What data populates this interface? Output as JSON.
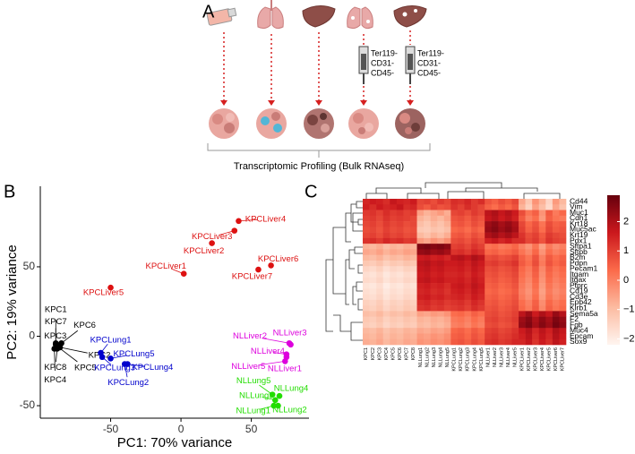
{
  "figure": {
    "panel_labels": [
      "A",
      "B",
      "C"
    ],
    "sort_markers": [
      [
        "Ter119-",
        "CD31-",
        "CD45-"
      ],
      [
        "Ter119-",
        "CD31-",
        "CD45-"
      ]
    ],
    "caption": "Transcriptomic Profiling (Bulk RNAseq)"
  },
  "chart_data": [
    {
      "type": "scatter",
      "x_label": "PC1: 70% variance",
      "y_label": "PC2: 19% variance",
      "xlim": [
        -100,
        91
      ],
      "ylim": [
        -59,
        108
      ],
      "xticks": [
        -50,
        0,
        50
      ],
      "yticks": [
        -50,
        0,
        50
      ],
      "series": [
        {
          "color": "#000000",
          "labels": [
            "KPC1",
            "KPC2",
            "KPC3",
            "KPC4",
            "KPC5",
            "KPC6",
            "KPC7",
            "KPC8"
          ],
          "x": [
            -89,
            -86,
            -88,
            -90,
            -87,
            -85,
            -89,
            -88
          ],
          "y": [
            -6,
            -8,
            -7,
            -9,
            -8,
            -5,
            -5,
            -9
          ]
        },
        {
          "color": "#0000cc",
          "labels": [
            "KPCLung1",
            "KPCLung2",
            "KPCLung3",
            "KPCLung4",
            "KPCLung5"
          ],
          "x": [
            -57,
            -40,
            -56,
            -38,
            -50
          ],
          "y": [
            -12,
            -20,
            -15,
            -20,
            -16
          ]
        },
        {
          "color": "#dd1111",
          "labels": [
            "KPCLiver1",
            "KPCLiver2",
            "KPCLiver3",
            "KPCLiver4",
            "KPCLiver5",
            "KPCLiver6",
            "KPCLiver7"
          ],
          "x": [
            2,
            22,
            38,
            41,
            -50,
            64,
            55
          ],
          "y": [
            45,
            67,
            76,
            83,
            35,
            51,
            48
          ]
        },
        {
          "color": "#dd00dd",
          "labels": [
            "NLLiver1",
            "NLLiver2",
            "NLLiver3",
            "NLLiver4",
            "NLLiver5"
          ],
          "x": [
            75,
            77,
            78,
            75,
            74
          ],
          "y": [
            -15,
            -5,
            -6,
            -13,
            -18
          ]
        },
        {
          "color": "#22dd00",
          "labels": [
            "NLLung1",
            "NLLung2",
            "NLLung3",
            "NLLung4",
            "NLLung5"
          ],
          "x": [
            66,
            69,
            67,
            70,
            65
          ],
          "y": [
            -50,
            -50,
            -46,
            -43,
            -42
          ]
        }
      ]
    },
    {
      "type": "heatmap",
      "rows": [
        "Cd44",
        "Vim",
        "Muc1",
        "Cdh1",
        "Krt18",
        "Muc5ac",
        "Krt19",
        "Pdx1",
        "Sftpa1",
        "Sftpb",
        "B2m",
        "Pdpn",
        "Pecam1",
        "Itgam",
        "Itgax",
        "Ptprc",
        "Cd19",
        "Cd3e",
        "Epb42",
        "Klrb1",
        "Sema5a",
        "F2",
        "Fgb",
        "Muc4",
        "Epcam",
        "Sox9"
      ],
      "columns": [
        "KPC1",
        "KPC2",
        "KPC3",
        "KPC4",
        "KPC5",
        "KPC6",
        "KPC7",
        "KPC8",
        "NLLung1",
        "NLLung2",
        "NLLung3",
        "NLLung4",
        "NLLung5",
        "KPCLung1",
        "KPCLung2",
        "KPCLung3",
        "KPCLung4",
        "KPCLung5",
        "NLLiver1",
        "NLLiver2",
        "NLLiver3",
        "NLLiver4",
        "NLLiver5",
        "KPCLiver1",
        "KPCLiver2",
        "KPCLiver3",
        "KPCLiver4",
        "KPCLiver5",
        "KPCLiver6",
        "KPCLiver7"
      ],
      "values": [
        [
          1.4,
          1.6,
          1.5,
          1.3,
          1.7,
          1.5,
          1.4,
          1.6,
          0.9,
          1.0,
          0.8,
          1.1,
          0.9,
          1.3,
          1.2,
          1.4,
          1.1,
          1.3,
          0.7,
          0.5,
          0.8,
          0.6,
          0.9,
          -0.6,
          -1.2,
          -0.3,
          -0.8,
          -1.5,
          -0.4,
          -0.9
        ],
        [
          1.5,
          1.3,
          1.6,
          1.4,
          1.5,
          1.7,
          1.3,
          1.4,
          0.8,
          0.6,
          0.9,
          0.7,
          0.8,
          1.2,
          1.0,
          1.3,
          1.1,
          0.9,
          0.5,
          0.3,
          0.6,
          0.4,
          0.7,
          -0.8,
          -1.4,
          -0.5,
          -1.0,
          -1.6,
          -0.6,
          -1.1
        ],
        [
          1.1,
          1.2,
          1.0,
          1.3,
          1.1,
          1.2,
          1.0,
          1.1,
          -0.5,
          -0.8,
          -0.6,
          -0.4,
          -0.7,
          0.9,
          1.0,
          0.8,
          1.1,
          0.9,
          1.8,
          2.0,
          1.7,
          1.9,
          1.6,
          0.8,
          0.2,
          0.5,
          -0.3,
          0.6,
          0.1,
          0.4
        ],
        [
          1.0,
          1.1,
          0.9,
          1.2,
          1.0,
          1.1,
          1.0,
          0.9,
          -0.8,
          -1.0,
          -0.7,
          -0.9,
          -0.6,
          0.7,
          0.8,
          0.6,
          0.9,
          0.7,
          1.7,
          1.9,
          1.6,
          1.8,
          1.5,
          0.6,
          0.0,
          0.3,
          -0.4,
          0.5,
          0.2,
          0.1
        ],
        [
          0.9,
          1.0,
          0.8,
          1.1,
          0.9,
          1.0,
          0.8,
          0.9,
          -1.0,
          -1.2,
          -0.9,
          -1.1,
          -0.8,
          0.6,
          0.7,
          0.5,
          0.8,
          0.6,
          2.2,
          2.4,
          2.1,
          2.3,
          2.0,
          0.9,
          0.4,
          0.7,
          0.2,
          0.8,
          0.5,
          0.6
        ],
        [
          0.8,
          0.9,
          0.7,
          1.0,
          0.8,
          0.9,
          0.7,
          0.8,
          -1.2,
          -1.3,
          -1.1,
          -1.2,
          -1.0,
          0.4,
          0.5,
          0.3,
          0.6,
          0.4,
          2.3,
          2.5,
          2.2,
          2.4,
          2.1,
          1.0,
          0.5,
          0.8,
          0.3,
          0.9,
          0.6,
          0.7
        ],
        [
          0.9,
          1.0,
          0.8,
          1.1,
          0.9,
          1.0,
          0.8,
          0.9,
          -0.9,
          -1.1,
          -0.8,
          -1.0,
          -0.7,
          0.6,
          0.7,
          0.5,
          0.8,
          0.6,
          2.0,
          2.2,
          1.9,
          2.1,
          1.8,
          1.2,
          0.8,
          1.0,
          0.6,
          1.1,
          0.9,
          0.8
        ],
        [
          1.2,
          1.3,
          1.1,
          1.4,
          1.2,
          1.3,
          1.1,
          1.2,
          -0.4,
          -0.6,
          -0.3,
          -0.5,
          -0.2,
          0.8,
          0.9,
          0.7,
          1.0,
          0.8,
          1.5,
          1.7,
          1.4,
          1.6,
          1.3,
          1.3,
          0.9,
          1.1,
          0.7,
          1.2,
          1.0,
          0.9
        ],
        [
          -0.8,
          -0.9,
          -0.7,
          -1.0,
          -0.8,
          -0.9,
          -0.7,
          -0.8,
          2.6,
          2.7,
          2.5,
          2.6,
          2.4,
          1.0,
          1.1,
          0.9,
          1.2,
          1.0,
          0.2,
          0.3,
          0.1,
          0.2,
          0.4,
          0.0,
          -0.3,
          0.2,
          -0.5,
          0.1,
          -0.2,
          0.0
        ],
        [
          -0.6,
          -0.7,
          -0.5,
          -0.8,
          -0.6,
          -0.7,
          -0.5,
          -0.6,
          2.3,
          2.4,
          2.2,
          2.3,
          2.1,
          1.2,
          1.3,
          1.1,
          1.4,
          1.2,
          0.4,
          0.5,
          0.3,
          0.4,
          0.6,
          0.2,
          -0.1,
          0.4,
          -0.3,
          0.3,
          0.0,
          0.2
        ],
        [
          -0.9,
          -1.0,
          -0.8,
          -1.1,
          -0.9,
          -1.0,
          -0.8,
          -0.9,
          1.6,
          1.7,
          1.5,
          1.6,
          1.4,
          1.8,
          1.9,
          1.7,
          2.0,
          1.8,
          0.8,
          0.9,
          0.7,
          0.8,
          1.0,
          0.5,
          0.2,
          0.7,
          0.0,
          0.6,
          0.3,
          0.5
        ],
        [
          -1.2,
          -1.3,
          -1.1,
          -1.4,
          -1.2,
          -1.3,
          -1.1,
          -1.2,
          1.8,
          1.9,
          1.7,
          1.8,
          1.6,
          1.6,
          1.7,
          1.5,
          1.8,
          1.6,
          1.0,
          1.1,
          0.9,
          1.0,
          1.2,
          0.6,
          0.3,
          0.8,
          0.1,
          0.7,
          0.4,
          0.6
        ],
        [
          -1.5,
          -1.6,
          -1.4,
          -1.7,
          -1.5,
          -1.6,
          -1.4,
          -1.5,
          1.7,
          1.8,
          1.6,
          1.7,
          1.5,
          1.5,
          1.6,
          1.4,
          1.7,
          1.5,
          0.8,
          0.9,
          0.7,
          0.8,
          1.0,
          0.4,
          0.1,
          0.6,
          -0.1,
          0.5,
          0.2,
          0.4
        ],
        [
          -1.7,
          -1.8,
          -1.6,
          -1.9,
          -1.7,
          -1.8,
          -1.6,
          -1.7,
          1.6,
          1.7,
          1.5,
          1.6,
          1.4,
          1.4,
          1.5,
          1.3,
          1.6,
          1.4,
          0.7,
          0.8,
          0.6,
          0.7,
          0.9,
          0.3,
          0.0,
          0.5,
          -0.2,
          0.4,
          0.1,
          0.3
        ],
        [
          -1.6,
          -1.7,
          -1.5,
          -1.8,
          -1.6,
          -1.7,
          -1.5,
          -1.6,
          1.7,
          1.8,
          1.6,
          1.7,
          1.5,
          1.5,
          1.6,
          1.4,
          1.7,
          1.5,
          0.6,
          0.7,
          0.5,
          0.6,
          0.8,
          0.2,
          -0.1,
          0.4,
          -0.3,
          0.3,
          0.0,
          0.2
        ],
        [
          -1.8,
          -1.9,
          -1.7,
          -2.0,
          -1.8,
          -1.9,
          -1.7,
          -1.8,
          1.5,
          1.6,
          1.4,
          1.5,
          1.3,
          1.6,
          1.7,
          1.5,
          1.8,
          1.6,
          0.5,
          0.6,
          0.4,
          0.5,
          0.7,
          0.1,
          -0.2,
          0.3,
          -0.4,
          0.2,
          -0.1,
          0.1
        ],
        [
          -1.7,
          -1.8,
          -1.6,
          -1.9,
          -1.7,
          -1.8,
          -1.6,
          -1.7,
          1.4,
          1.5,
          1.3,
          1.4,
          1.2,
          1.5,
          1.6,
          1.4,
          1.7,
          1.5,
          0.4,
          0.5,
          0.3,
          0.4,
          0.6,
          0.0,
          -0.3,
          0.2,
          -0.5,
          0.1,
          -0.2,
          0.0
        ],
        [
          -1.6,
          -1.7,
          -1.5,
          -1.8,
          -1.6,
          -1.7,
          -1.5,
          -1.6,
          1.5,
          1.6,
          1.4,
          1.5,
          1.3,
          1.4,
          1.5,
          1.3,
          1.6,
          1.4,
          0.5,
          0.6,
          0.4,
          0.5,
          0.7,
          0.1,
          -0.2,
          0.3,
          -0.4,
          0.2,
          -0.1,
          0.1
        ],
        [
          -1.4,
          -1.5,
          -1.3,
          -1.6,
          -1.4,
          -1.5,
          -1.3,
          -1.4,
          1.3,
          1.4,
          1.2,
          1.3,
          1.1,
          1.2,
          1.3,
          1.1,
          1.4,
          1.2,
          0.6,
          0.7,
          0.5,
          0.6,
          0.8,
          0.3,
          0.0,
          0.5,
          -0.2,
          0.4,
          0.1,
          0.3
        ],
        [
          -1.3,
          -1.4,
          -1.2,
          -1.5,
          -1.3,
          -1.4,
          -1.2,
          -1.3,
          1.2,
          1.3,
          1.1,
          1.2,
          1.0,
          1.1,
          1.2,
          1.0,
          1.3,
          1.1,
          0.7,
          0.8,
          0.6,
          0.7,
          0.9,
          0.4,
          0.1,
          0.6,
          -0.1,
          0.5,
          0.2,
          0.4
        ],
        [
          -1.0,
          -1.1,
          -0.9,
          -1.2,
          -1.0,
          -1.1,
          -0.9,
          -1.0,
          -0.5,
          -0.6,
          -0.4,
          -0.5,
          -0.3,
          0.3,
          0.4,
          0.2,
          0.5,
          0.3,
          0.8,
          0.9,
          0.7,
          0.8,
          1.0,
          1.8,
          2.2,
          1.6,
          2.0,
          1.7,
          2.3,
          1.9
        ],
        [
          -1.2,
          -1.3,
          -1.1,
          -1.4,
          -1.2,
          -1.3,
          -1.1,
          -1.2,
          -0.8,
          -0.9,
          -0.7,
          -0.8,
          -0.6,
          0.1,
          0.2,
          0.0,
          0.3,
          0.1,
          0.9,
          1.0,
          0.8,
          0.9,
          1.1,
          2.2,
          2.5,
          2.0,
          2.4,
          2.1,
          2.6,
          2.3
        ],
        [
          -1.3,
          -1.4,
          -1.2,
          -1.5,
          -1.3,
          -1.4,
          -1.2,
          -1.3,
          -0.9,
          -1.0,
          -0.8,
          -0.9,
          -0.7,
          0.0,
          0.1,
          -0.1,
          0.2,
          0.0,
          0.8,
          0.9,
          0.7,
          0.8,
          1.0,
          2.3,
          2.6,
          2.1,
          2.5,
          2.2,
          2.7,
          2.4
        ],
        [
          -0.9,
          -1.0,
          -0.8,
          -1.1,
          -0.9,
          -1.0,
          -0.8,
          -0.9,
          -0.6,
          -0.7,
          -0.5,
          -0.6,
          -0.4,
          0.4,
          0.5,
          0.3,
          0.6,
          0.4,
          1.0,
          1.1,
          0.9,
          1.0,
          1.2,
          1.6,
          1.9,
          1.4,
          1.8,
          1.5,
          2.0,
          1.7
        ],
        [
          -0.8,
          -0.9,
          -0.7,
          -1.0,
          -0.8,
          -0.9,
          -0.7,
          -0.8,
          -0.4,
          -0.5,
          -0.3,
          -0.4,
          -0.2,
          0.5,
          0.6,
          0.4,
          0.7,
          0.5,
          1.1,
          1.2,
          1.0,
          1.1,
          1.3,
          1.5,
          1.8,
          1.3,
          1.7,
          1.4,
          1.9,
          1.6
        ],
        [
          -0.7,
          -0.8,
          -0.6,
          -0.9,
          -0.7,
          -0.8,
          -0.6,
          -0.7,
          -0.3,
          -0.4,
          -0.2,
          -0.3,
          -0.1,
          0.6,
          0.7,
          0.5,
          0.8,
          0.6,
          1.2,
          1.3,
          1.1,
          1.2,
          1.4,
          1.4,
          1.7,
          1.2,
          1.6,
          1.3,
          1.8,
          1.5
        ]
      ],
      "clim": [
        -2.2,
        2.9
      ],
      "colors": [
        "#fff5f0",
        "#fcbba1",
        "#fb6a4a",
        "#cb181d",
        "#67000d"
      ],
      "colorbar_ticks": [
        2,
        1,
        0,
        {
          "value": -1,
          "label": "−1"
        },
        {
          "value": -2,
          "label": "−2"
        }
      ]
    }
  ]
}
